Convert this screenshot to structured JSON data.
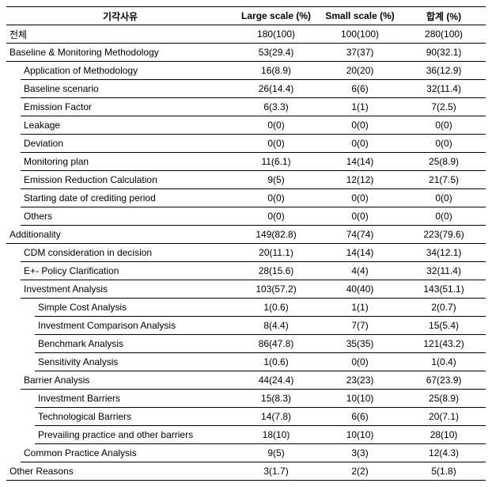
{
  "header": {
    "reason": "기각사유",
    "large": "Large scale (%)",
    "small": "Small scale (%)",
    "total": "합계 (%)"
  },
  "rows": [
    {
      "indent": 0,
      "label": "전체",
      "large": "180(100)",
      "small": "100(100)",
      "total": "280(100)",
      "border": true
    },
    {
      "indent": 0,
      "label": "Baseline & Monitoring Methodology",
      "large": "53(29.4)",
      "small": "37(37)",
      "total": "90(32.1)",
      "border": true
    },
    {
      "indent": 1,
      "label": "Application of Methodology",
      "large": "16(8.9)",
      "small": "20(20)",
      "total": "36(12.9)",
      "border": true
    },
    {
      "indent": 1,
      "label": "Baseline scenario",
      "large": "26(14.4)",
      "small": "6(6)",
      "total": "32(11.4)",
      "border": true
    },
    {
      "indent": 1,
      "label": "Emission Factor",
      "large": "6(3.3)",
      "small": "1(1)",
      "total": "7(2.5)",
      "border": true
    },
    {
      "indent": 1,
      "label": "Leakage",
      "large": "0(0)",
      "small": "0(0)",
      "total": "0(0)",
      "border": true
    },
    {
      "indent": 1,
      "label": "Deviation",
      "large": "0(0)",
      "small": "0(0)",
      "total": "0(0)",
      "border": true
    },
    {
      "indent": 1,
      "label": "Monitoring plan",
      "large": "11(6.1)",
      "small": "14(14)",
      "total": "25(8.9)",
      "border": true
    },
    {
      "indent": 1,
      "label": "Emission Reduction Calculation",
      "large": "9(5)",
      "small": "12(12)",
      "total": "21(7.5)",
      "border": true
    },
    {
      "indent": 1,
      "label": "Starting date of crediting period",
      "large": "0(0)",
      "small": "0(0)",
      "total": "0(0)",
      "border": true
    },
    {
      "indent": 1,
      "label": "Others",
      "large": "0(0)",
      "small": "0(0)",
      "total": "0(0)",
      "border": true
    },
    {
      "indent": 0,
      "label": "Additionality",
      "large": "149(82.8)",
      "small": "74(74)",
      "total": "223(79.6)",
      "border": true
    },
    {
      "indent": 1,
      "label": "CDM consideration in decision",
      "large": "20(11.1)",
      "small": "14(14)",
      "total": "34(12.1)",
      "border": true
    },
    {
      "indent": 1,
      "label": "E+- Policy Clarification",
      "large": "28(15.6)",
      "small": "4(4)",
      "total": "32(11.4)",
      "border": true
    },
    {
      "indent": 1,
      "label": "Investment Analysis",
      "large": "103(57.2)",
      "small": "40(40)",
      "total": "143(51.1)",
      "border": true
    },
    {
      "indent": 2,
      "label": "Simple Cost Analysis",
      "large": "1(0.6)",
      "small": "1(1)",
      "total": "2(0.7)",
      "border": true
    },
    {
      "indent": 2,
      "label": "Investment Comparison Analysis",
      "large": "8(4.4)",
      "small": "7(7)",
      "total": "15(5.4)",
      "border": true
    },
    {
      "indent": 2,
      "label": "Benchmark Analysis",
      "large": "86(47.8)",
      "small": "35(35)",
      "total": "121(43.2)",
      "border": true
    },
    {
      "indent": 2,
      "label": "Sensitivity Analysis",
      "large": "1(0.6)",
      "small": "0(0)",
      "total": "1(0.4)",
      "border": true
    },
    {
      "indent": 1,
      "label": "Barrier Analysis",
      "large": "44(24.4)",
      "small": "23(23)",
      "total": "67(23.9)",
      "border": true
    },
    {
      "indent": 2,
      "label": "Investment Barriers",
      "large": "15(8.3)",
      "small": "10(10)",
      "total": "25(8.9)",
      "border": true
    },
    {
      "indent": 2,
      "label": "Technological Barriers",
      "large": "14(7.8)",
      "small": "6(6)",
      "total": "20(7.1)",
      "border": true
    },
    {
      "indent": 2,
      "label": "Prevailing practice and other barriers",
      "large": "18(10)",
      "small": "10(10)",
      "total": "28(10)",
      "border": true
    },
    {
      "indent": 1,
      "label": "Common Practice Analysis",
      "large": "9(5)",
      "small": "3(3)",
      "total": "12(4.3)",
      "border": true
    },
    {
      "indent": 0,
      "label": "Other Reasons",
      "large": "3(1.7)",
      "small": "2(2)",
      "total": "5(1.8)",
      "border": "thick"
    }
  ]
}
